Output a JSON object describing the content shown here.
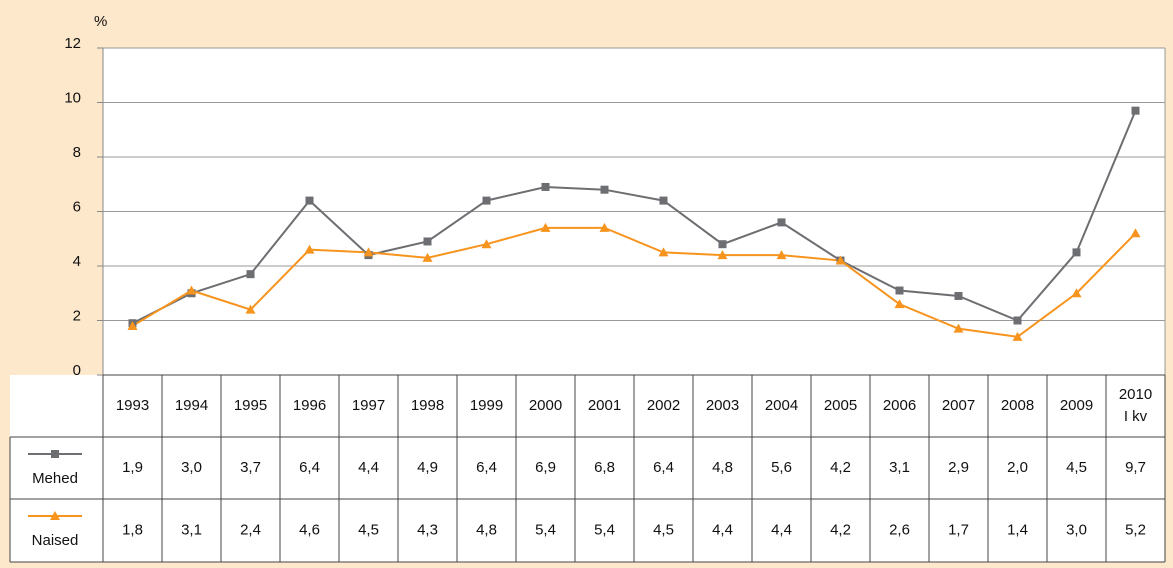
{
  "chart_data": {
    "type": "line",
    "y_unit": "%",
    "categories": [
      "1993",
      "1994",
      "1995",
      "1996",
      "1997",
      "1998",
      "1999",
      "2000",
      "2001",
      "2002",
      "2003",
      "2004",
      "2005",
      "2006",
      "2007",
      "2008",
      "2009",
      "2010\nI kv"
    ],
    "series": [
      {
        "name": "Mehed",
        "color": "#6d6e71",
        "marker": "square",
        "values": [
          1.9,
          3.0,
          3.7,
          6.4,
          4.4,
          4.9,
          6.4,
          6.9,
          6.8,
          6.4,
          4.8,
          5.6,
          4.2,
          3.1,
          2.9,
          2.0,
          4.5,
          9.7
        ],
        "value_labels": [
          "1,9",
          "3,0",
          "3,7",
          "6,4",
          "4,4",
          "4,9",
          "6,4",
          "6,9",
          "6,8",
          "6,4",
          "4,8",
          "5,6",
          "4,2",
          "3,1",
          "2,9",
          "2,0",
          "4,5",
          "9,7"
        ]
      },
      {
        "name": "Naised",
        "color": "#f7941d",
        "marker": "triangle",
        "values": [
          1.8,
          3.1,
          2.4,
          4.6,
          4.5,
          4.3,
          4.8,
          5.4,
          5.4,
          4.5,
          4.4,
          4.4,
          4.2,
          2.6,
          1.7,
          1.4,
          3.0,
          5.2
        ],
        "value_labels": [
          "1,8",
          "3,1",
          "2,4",
          "4,6",
          "4,5",
          "4,3",
          "4,8",
          "5,4",
          "5,4",
          "4,5",
          "4,4",
          "4,4",
          "4,2",
          "2,6",
          "1,7",
          "1,4",
          "3,0",
          "5,2"
        ]
      }
    ],
    "ylim": [
      0,
      12
    ],
    "yticks": [
      0,
      2,
      4,
      6,
      8,
      10,
      12
    ],
    "grid": true
  }
}
